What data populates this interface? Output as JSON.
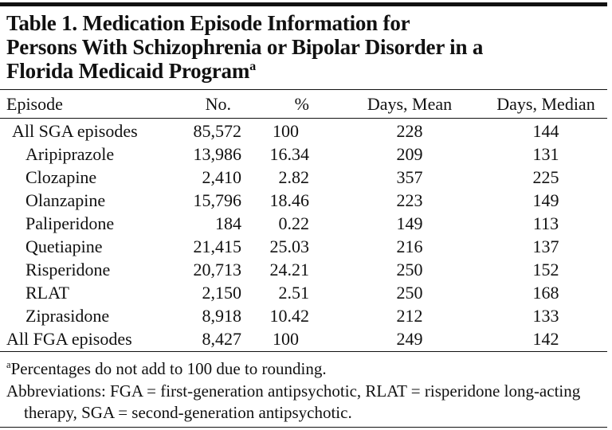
{
  "table": {
    "title": "Table 1. Medication Episode Information for Persons With Schizophrenia or Bipolar Disorder in a Florida Medicaid Program",
    "title_note": "a",
    "columns": [
      "Episode",
      "No.",
      "%",
      "Days, Mean",
      "Days, Median"
    ],
    "rows": [
      [
        "All SGA episodes",
        "85,572",
        "100",
        "228",
        "144"
      ],
      [
        "Aripiprazole",
        "13,986",
        "16.34",
        "209",
        "131"
      ],
      [
        "Clozapine",
        "2,410",
        "2.82",
        "357",
        "225"
      ],
      [
        "Olanzapine",
        "15,796",
        "18.46",
        "223",
        "149"
      ],
      [
        "Paliperidone",
        "184",
        "0.22",
        "149",
        "113"
      ],
      [
        "Quetiapine",
        "21,415",
        "25.03",
        "216",
        "137"
      ],
      [
        "Risperidone",
        "20,713",
        "24.21",
        "250",
        "152"
      ],
      [
        "RLAT",
        "2,150",
        "2.51",
        "250",
        "168"
      ],
      [
        "Ziprasidone",
        "8,918",
        "10.42",
        "212",
        "133"
      ],
      [
        "All FGA episodes",
        "8,427",
        "100",
        "249",
        "142"
      ]
    ]
  },
  "footnotes": {
    "marker": "a",
    "note": "Percentages do not add to 100 due to rounding.",
    "abbreviations": "Abbreviations: FGA = first-generation antipsychotic, RLAT = risperidone long-acting therapy, SGA = second-generation antipsychotic."
  }
}
